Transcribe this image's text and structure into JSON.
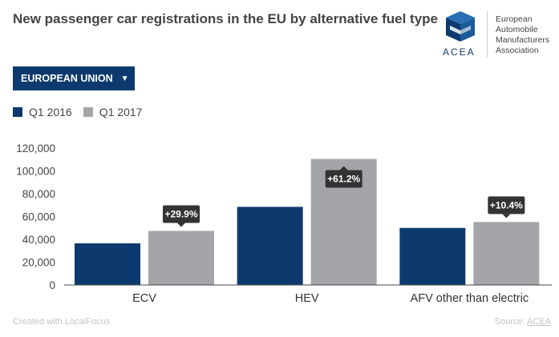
{
  "title": "New passenger car registrations in the EU by alternative fuel type",
  "logo": {
    "abbr": "ACEA",
    "name_lines": [
      "European",
      "Automobile",
      "Manufacturers",
      "Association"
    ]
  },
  "dropdown": {
    "label": "EUROPEAN UNION",
    "icon": "chevron-down-icon"
  },
  "colors": {
    "q1_2016": "#0d3a6e",
    "q1_2017": "#a3a5a8",
    "axis": "#444444",
    "grid": "#dddddd",
    "tooltip_bg": "#333333"
  },
  "chart_data": {
    "type": "bar",
    "title": "New passenger car registrations in the EU by alternative fuel type",
    "categories": [
      "ECV",
      "HEV",
      "AFV other than electric"
    ],
    "series": [
      {
        "name": "Q1 2016",
        "values": [
          36500,
          68500,
          50000
        ]
      },
      {
        "name": "Q1 2017",
        "values": [
          47400,
          110500,
          55200
        ]
      }
    ],
    "annotations": [
      "+29.9%",
      "+61.2%",
      "+10.4%"
    ],
    "ylim": [
      0,
      120000
    ],
    "yticks": [
      0,
      20000,
      40000,
      60000,
      80000,
      100000,
      120000
    ],
    "ytick_labels": [
      "0",
      "20,000",
      "40,000",
      "60,000",
      "80,000",
      "100,000",
      "120,000"
    ],
    "legend_position": "top-left",
    "grid": true
  },
  "footer": {
    "created_with": "Created with LocalFocus",
    "source_label": "Source:",
    "source_name": "ACEA"
  }
}
